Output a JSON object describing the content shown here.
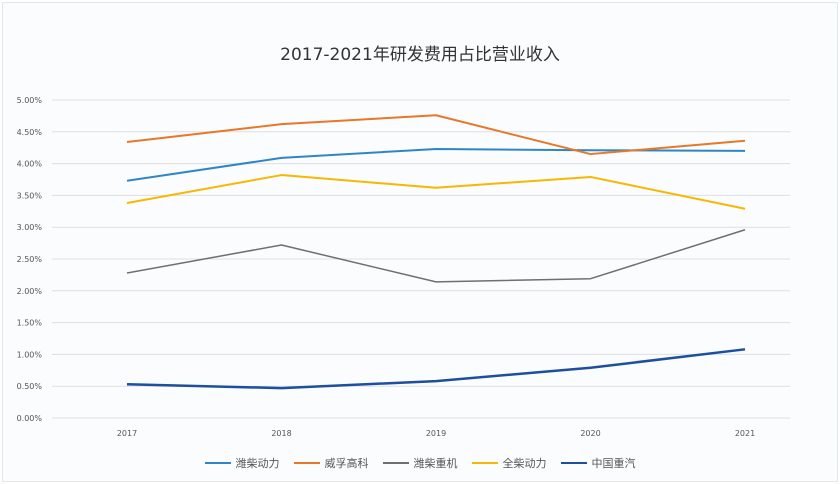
{
  "chart_data": {
    "type": "line",
    "title": "2017-2021年研发费用占比营业收入",
    "categories": [
      "2017",
      "2018",
      "2019",
      "2020",
      "2021"
    ],
    "ylim": [
      0,
      5
    ],
    "yticks": [
      "0.00%",
      "0.50%",
      "1.00%",
      "1.50%",
      "2.00%",
      "2.50%",
      "3.00%",
      "3.50%",
      "4.00%",
      "4.50%",
      "5.00%"
    ],
    "grid": true,
    "legend": "bottom",
    "series": [
      {
        "name": "潍柴动力",
        "color": "#2e86c8",
        "width": 2,
        "values": [
          3.73,
          4.09,
          4.23,
          4.21,
          4.2
        ]
      },
      {
        "name": "威孚高科",
        "color": "#e8772a",
        "width": 2,
        "values": [
          4.34,
          4.62,
          4.76,
          4.15,
          4.36
        ]
      },
      {
        "name": "潍柴重机",
        "color": "#6f6f6f",
        "width": 1.5,
        "values": [
          2.28,
          2.72,
          2.14,
          2.19,
          2.96
        ]
      },
      {
        "name": "全柴动力",
        "color": "#f6b800",
        "width": 2,
        "values": [
          3.38,
          3.82,
          3.62,
          3.79,
          3.29
        ]
      },
      {
        "name": "中国重汽",
        "color": "#1d4f9e",
        "width": 2.5,
        "values": [
          0.53,
          0.47,
          0.58,
          0.79,
          1.08
        ]
      }
    ]
  }
}
